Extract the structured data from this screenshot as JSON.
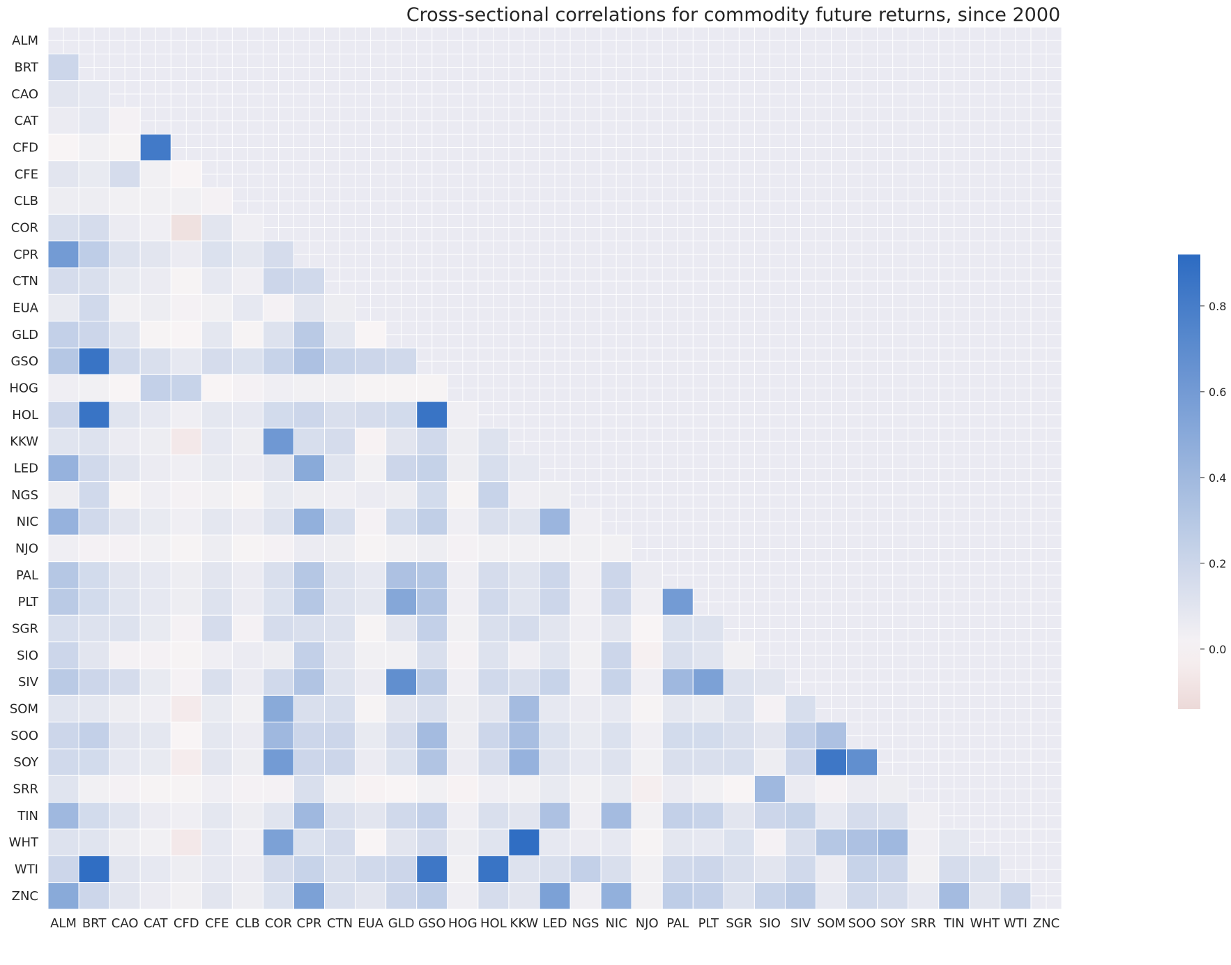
{
  "chart_data": {
    "type": "heatmap",
    "title": "Cross-sectional correlations for commodity future returns, since 2000",
    "labels": [
      "ALM",
      "BRT",
      "CAO",
      "CAT",
      "CFD",
      "CFE",
      "CLB",
      "COR",
      "CPR",
      "CTN",
      "EUA",
      "GLD",
      "GSO",
      "HOG",
      "HOL",
      "KKW",
      "LED",
      "NGS",
      "NIC",
      "NJO",
      "PAL",
      "PLT",
      "SGR",
      "SIO",
      "SIV",
      "SOM",
      "SOO",
      "SOY",
      "SRR",
      "TIN",
      "WHT",
      "WTI",
      "ZNC"
    ],
    "lower_triangle": [
      [],
      [
        0.2
      ],
      [
        0.1,
        0.08
      ],
      [
        0.06,
        0.08,
        0.02
      ],
      [
        0.0,
        0.03,
        0.01,
        0.82
      ],
      [
        0.1,
        0.07,
        0.16,
        0.03,
        0.0
      ],
      [
        0.05,
        0.05,
        0.03,
        0.03,
        0.03,
        0.02
      ],
      [
        0.14,
        0.16,
        0.06,
        0.04,
        -0.1,
        0.1,
        0.04
      ],
      [
        0.6,
        0.26,
        0.12,
        0.1,
        0.06,
        0.13,
        0.09,
        0.16
      ],
      [
        0.16,
        0.14,
        0.07,
        0.06,
        0.01,
        0.08,
        0.04,
        0.2,
        0.18
      ],
      [
        0.07,
        0.18,
        0.03,
        0.05,
        0.02,
        0.03,
        0.08,
        0.02,
        0.1,
        0.05
      ],
      [
        0.24,
        0.2,
        0.11,
        0.01,
        0.0,
        0.09,
        0.01,
        0.12,
        0.28,
        0.09,
        0.0
      ],
      [
        0.3,
        0.86,
        0.18,
        0.14,
        0.08,
        0.16,
        0.13,
        0.22,
        0.34,
        0.22,
        0.2,
        0.18
      ],
      [
        0.04,
        0.03,
        0.0,
        0.24,
        0.22,
        0.0,
        0.02,
        0.04,
        0.03,
        0.03,
        0.01,
        0.01,
        0.01
      ],
      [
        0.2,
        0.86,
        0.11,
        0.08,
        0.04,
        0.09,
        0.08,
        0.17,
        0.2,
        0.14,
        0.16,
        0.17,
        0.86,
        0.04
      ],
      [
        0.11,
        0.12,
        0.06,
        0.05,
        -0.06,
        0.08,
        0.05,
        0.62,
        0.15,
        0.16,
        -0.01,
        0.1,
        0.18,
        0.05,
        0.12
      ],
      [
        0.44,
        0.18,
        0.1,
        0.06,
        0.04,
        0.07,
        0.06,
        0.1,
        0.5,
        0.11,
        0.03,
        0.2,
        0.23,
        0.05,
        0.15,
        0.08
      ],
      [
        0.05,
        0.18,
        0.01,
        0.04,
        0.02,
        0.03,
        0.01,
        0.07,
        0.05,
        0.04,
        0.06,
        0.05,
        0.17,
        0.01,
        0.22,
        0.04,
        0.05
      ],
      [
        0.44,
        0.18,
        0.1,
        0.07,
        0.04,
        0.09,
        0.06,
        0.12,
        0.46,
        0.15,
        0.02,
        0.17,
        0.25,
        0.04,
        0.14,
        0.11,
        0.42,
        0.04
      ],
      [
        0.04,
        0.02,
        0.02,
        0.03,
        0.01,
        0.05,
        0.01,
        0.02,
        0.06,
        0.05,
        0.01,
        0.03,
        0.05,
        0.02,
        0.03,
        0.03,
        0.03,
        0.03,
        0.03
      ],
      [
        0.3,
        0.17,
        0.1,
        0.08,
        0.05,
        0.1,
        0.06,
        0.14,
        0.3,
        0.12,
        0.08,
        0.34,
        0.3,
        0.04,
        0.16,
        0.11,
        0.2,
        0.04,
        0.2,
        0.06
      ],
      [
        0.28,
        0.17,
        0.11,
        0.08,
        0.05,
        0.12,
        0.06,
        0.13,
        0.3,
        0.12,
        0.09,
        0.52,
        0.32,
        0.04,
        0.18,
        0.11,
        0.2,
        0.04,
        0.2,
        0.04,
        0.6
      ],
      [
        0.15,
        0.12,
        0.12,
        0.07,
        0.02,
        0.16,
        0.02,
        0.16,
        0.14,
        0.12,
        0.01,
        0.1,
        0.24,
        0.03,
        0.14,
        0.16,
        0.1,
        0.04,
        0.1,
        0.0,
        0.13,
        0.12
      ],
      [
        0.2,
        0.1,
        0.02,
        0.02,
        0.01,
        0.04,
        0.06,
        0.05,
        0.24,
        0.1,
        0.03,
        0.03,
        0.14,
        0.02,
        0.12,
        0.04,
        0.11,
        0.03,
        0.2,
        -0.02,
        0.14,
        0.11,
        0.03
      ],
      [
        0.28,
        0.2,
        0.16,
        0.07,
        0.02,
        0.14,
        0.06,
        0.18,
        0.32,
        0.12,
        0.06,
        0.68,
        0.28,
        0.04,
        0.18,
        0.14,
        0.22,
        0.04,
        0.22,
        0.04,
        0.4,
        0.56,
        0.12,
        0.1
      ],
      [
        0.11,
        0.09,
        0.05,
        0.04,
        -0.05,
        0.07,
        0.03,
        0.5,
        0.14,
        0.15,
        0.01,
        0.1,
        0.14,
        0.05,
        0.1,
        0.38,
        0.08,
        0.06,
        0.08,
        0.01,
        0.09,
        0.07,
        0.12,
        0.02,
        0.15
      ],
      [
        0.2,
        0.24,
        0.1,
        0.09,
        0.0,
        0.09,
        0.06,
        0.4,
        0.2,
        0.2,
        0.07,
        0.16,
        0.38,
        0.05,
        0.2,
        0.36,
        0.13,
        0.07,
        0.13,
        0.04,
        0.17,
        0.17,
        0.14,
        0.1,
        0.24,
        0.34
      ],
      [
        0.18,
        0.17,
        0.08,
        0.07,
        -0.04,
        0.1,
        0.05,
        0.6,
        0.2,
        0.2,
        0.06,
        0.13,
        0.32,
        0.06,
        0.16,
        0.44,
        0.12,
        0.08,
        0.12,
        0.03,
        0.14,
        0.14,
        0.15,
        0.05,
        0.2,
        0.84,
        0.68
      ],
      [
        0.11,
        0.03,
        0.02,
        0.01,
        0.01,
        0.04,
        0.02,
        0.02,
        0.14,
        0.03,
        -0.01,
        0.0,
        0.03,
        -0.01,
        0.04,
        0.03,
        0.07,
        0.03,
        0.07,
        -0.03,
        0.06,
        0.03,
        0.0,
        0.4,
        0.06,
        0.02,
        0.06,
        0.05
      ],
      [
        0.4,
        0.17,
        0.11,
        0.06,
        0.04,
        0.09,
        0.05,
        0.11,
        0.4,
        0.14,
        0.1,
        0.18,
        0.24,
        0.04,
        0.14,
        0.1,
        0.34,
        0.04,
        0.38,
        0.03,
        0.24,
        0.22,
        0.1,
        0.2,
        0.23,
        0.08,
        0.16,
        0.14,
        0.04
      ],
      [
        0.12,
        0.11,
        0.05,
        0.03,
        -0.06,
        0.08,
        0.04,
        0.56,
        0.13,
        0.16,
        0.0,
        0.1,
        0.16,
        0.05,
        0.11,
        0.9,
        0.08,
        0.06,
        0.08,
        0.01,
        0.09,
        0.08,
        0.13,
        0.02,
        0.14,
        0.3,
        0.34,
        0.4,
        0.04,
        0.09
      ],
      [
        0.2,
        0.9,
        0.1,
        0.08,
        0.05,
        0.08,
        0.06,
        0.16,
        0.22,
        0.14,
        0.18,
        0.2,
        0.84,
        0.03,
        0.86,
        0.12,
        0.14,
        0.24,
        0.14,
        0.03,
        0.18,
        0.2,
        0.14,
        0.1,
        0.18,
        0.06,
        0.22,
        0.2,
        0.03,
        0.16,
        0.12
      ],
      [
        0.5,
        0.2,
        0.1,
        0.06,
        0.03,
        0.1,
        0.05,
        0.13,
        0.56,
        0.14,
        0.1,
        0.2,
        0.26,
        0.04,
        0.16,
        0.1,
        0.56,
        0.04,
        0.46,
        0.03,
        0.26,
        0.24,
        0.12,
        0.22,
        0.28,
        0.08,
        0.18,
        0.16,
        0.08,
        0.38,
        0.1,
        0.2
      ]
    ],
    "colorbar": {
      "ticks": [
        0.0,
        0.2,
        0.4,
        0.6,
        0.8
      ],
      "tick_labels": [
        "0.0",
        "0.2",
        "0.4",
        "0.6",
        "0.8"
      ],
      "range": [
        -0.14,
        0.92
      ]
    },
    "colors": {
      "negative": "#ECD9D8",
      "zero": "#F8F4F5",
      "positive": "#2C6BC2",
      "background": "#EAEAF2",
      "grid": "#FFFFFF"
    },
    "grid": true,
    "masked": "upper triangle"
  }
}
